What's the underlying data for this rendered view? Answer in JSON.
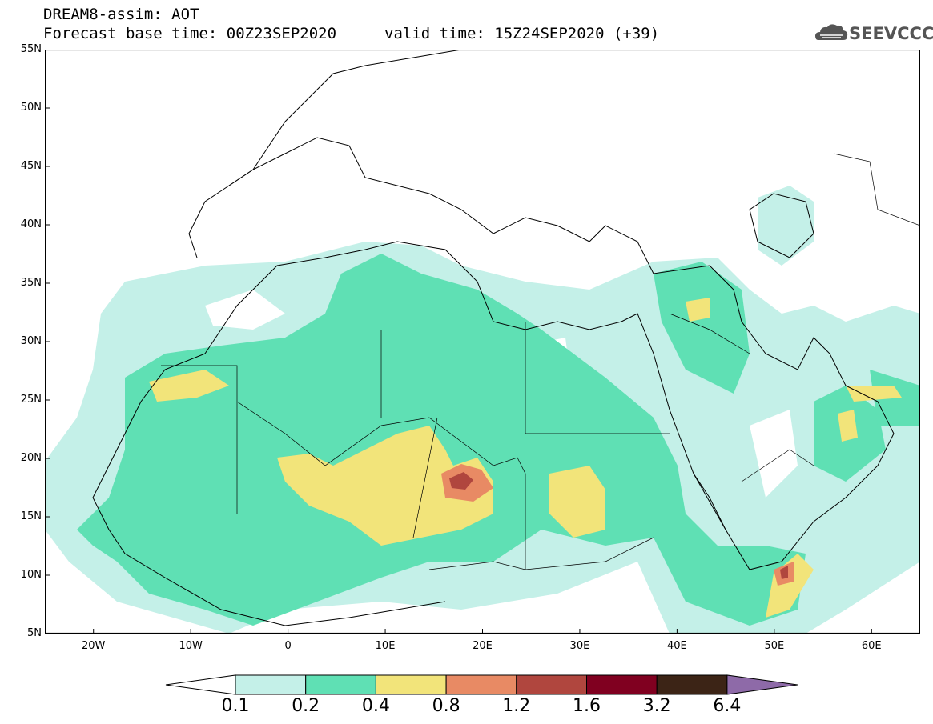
{
  "header": {
    "title": "DREAM8-assim: AOT",
    "base_time": "Forecast base time: 00Z23SEP2020",
    "valid_time": "valid time: 15Z24SEP2020 (+39)",
    "logo_text": "SEEVCCC"
  },
  "map": {
    "lat_ticks": [
      "55N",
      "50N",
      "45N",
      "40N",
      "35N",
      "30N",
      "25N",
      "20N",
      "15N",
      "10N",
      "5N"
    ],
    "lon_ticks": [
      "20W",
      "10W",
      "0",
      "10E",
      "20E",
      "30E",
      "40E",
      "50E",
      "60E"
    ],
    "lon_range": [
      -25,
      65
    ],
    "lat_range": [
      5,
      55
    ]
  },
  "legend": {
    "bins": [
      {
        "color": "#c4f0e8"
      },
      {
        "color": "#5fe0b4"
      },
      {
        "color": "#f2e47a"
      },
      {
        "color": "#e88a64"
      },
      {
        "color": "#b0463e"
      },
      {
        "color": "#800020"
      },
      {
        "color": "#3c2416"
      }
    ],
    "under_color": "#ffffff",
    "over_color": "#8e6aa8",
    "labels": [
      "0.1",
      "0.2",
      "0.4",
      "0.8",
      "1.2",
      "1.6",
      "3.2",
      "6.4"
    ]
  }
}
